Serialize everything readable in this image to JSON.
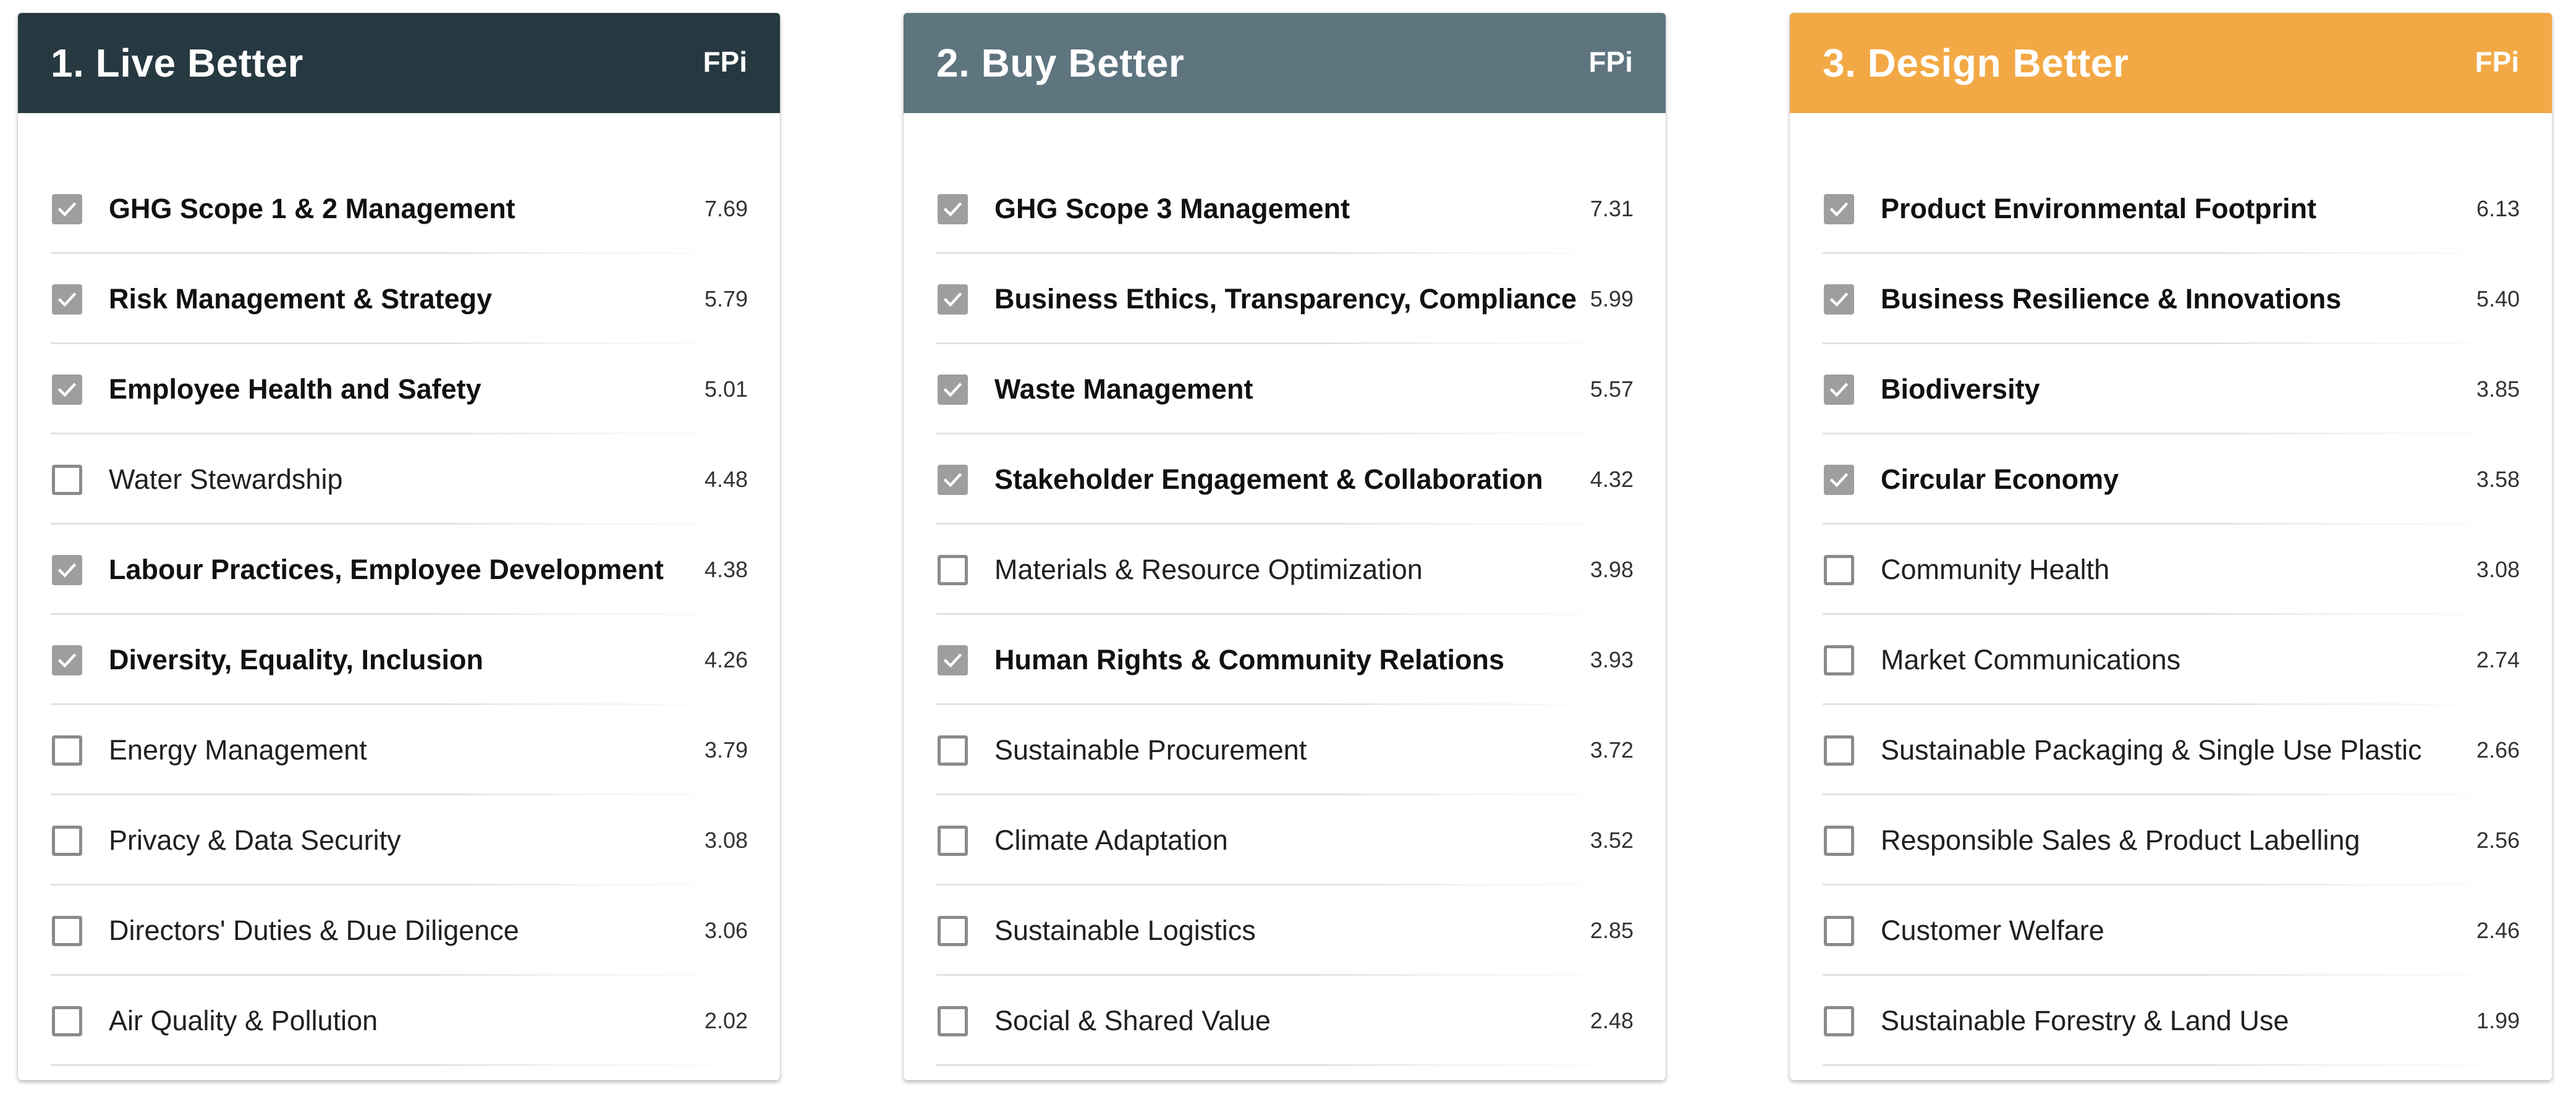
{
  "columns": [
    {
      "title": "1. Live Better",
      "badge": "FPi",
      "header_color": "#263840",
      "items": [
        {
          "label": "GHG Scope 1 & 2 Management",
          "value": "7.69",
          "checked": true
        },
        {
          "label": "Risk Management & Strategy",
          "value": "5.79",
          "checked": true
        },
        {
          "label": "Employee Health and Safety",
          "value": "5.01",
          "checked": true
        },
        {
          "label": "Water Stewardship",
          "value": "4.48",
          "checked": false
        },
        {
          "label": "Labour Practices, Employee Development",
          "value": "4.38",
          "checked": true
        },
        {
          "label": "Diversity, Equality, Inclusion",
          "value": "4.26",
          "checked": true
        },
        {
          "label": "Energy Management",
          "value": "3.79",
          "checked": false
        },
        {
          "label": "Privacy & Data Security",
          "value": "3.08",
          "checked": false
        },
        {
          "label": "Directors' Duties & Due Diligence",
          "value": "3.06",
          "checked": false
        },
        {
          "label": "Air Quality & Pollution",
          "value": "2.02",
          "checked": false
        }
      ]
    },
    {
      "title": "2. Buy Better",
      "badge": "FPi",
      "header_color": "#5e7580",
      "items": [
        {
          "label": "GHG Scope 3 Management",
          "value": "7.31",
          "checked": true
        },
        {
          "label": "Business Ethics, Transparency, Compliance",
          "value": "5.99",
          "checked": true
        },
        {
          "label": "Waste Management",
          "value": "5.57",
          "checked": true
        },
        {
          "label": "Stakeholder Engagement & Collaboration",
          "value": "4.32",
          "checked": true
        },
        {
          "label": "Materials & Resource Optimization",
          "value": "3.98",
          "checked": false
        },
        {
          "label": "Human Rights & Community Relations",
          "value": "3.93",
          "checked": true
        },
        {
          "label": "Sustainable Procurement",
          "value": "3.72",
          "checked": false
        },
        {
          "label": "Climate Adaptation",
          "value": "3.52",
          "checked": false
        },
        {
          "label": "Sustainable Logistics",
          "value": "2.85",
          "checked": false
        },
        {
          "label": "Social & Shared Value",
          "value": "2.48",
          "checked": false
        }
      ]
    },
    {
      "title": "3. Design Better",
      "badge": "FPi",
      "header_color": "#f2a945",
      "items": [
        {
          "label": "Product Environmental Footprint",
          "value": "6.13",
          "checked": true
        },
        {
          "label": "Business Resilience & Innovations",
          "value": "5.40",
          "checked": true
        },
        {
          "label": "Biodiversity",
          "value": "3.85",
          "checked": true
        },
        {
          "label": "Circular Economy",
          "value": "3.58",
          "checked": true
        },
        {
          "label": "Community Health",
          "value": "3.08",
          "checked": false
        },
        {
          "label": "Market Communications",
          "value": "2.74",
          "checked": false
        },
        {
          "label": "Sustainable Packaging & Single Use Plastic",
          "value": "2.66",
          "checked": false
        },
        {
          "label": "Responsible Sales & Product Labelling",
          "value": "2.56",
          "checked": false
        },
        {
          "label": "Customer Welfare",
          "value": "2.46",
          "checked": false
        },
        {
          "label": "Sustainable Forestry & Land Use",
          "value": "1.99",
          "checked": false
        }
      ]
    }
  ],
  "icons": {
    "checked": "check-icon"
  }
}
